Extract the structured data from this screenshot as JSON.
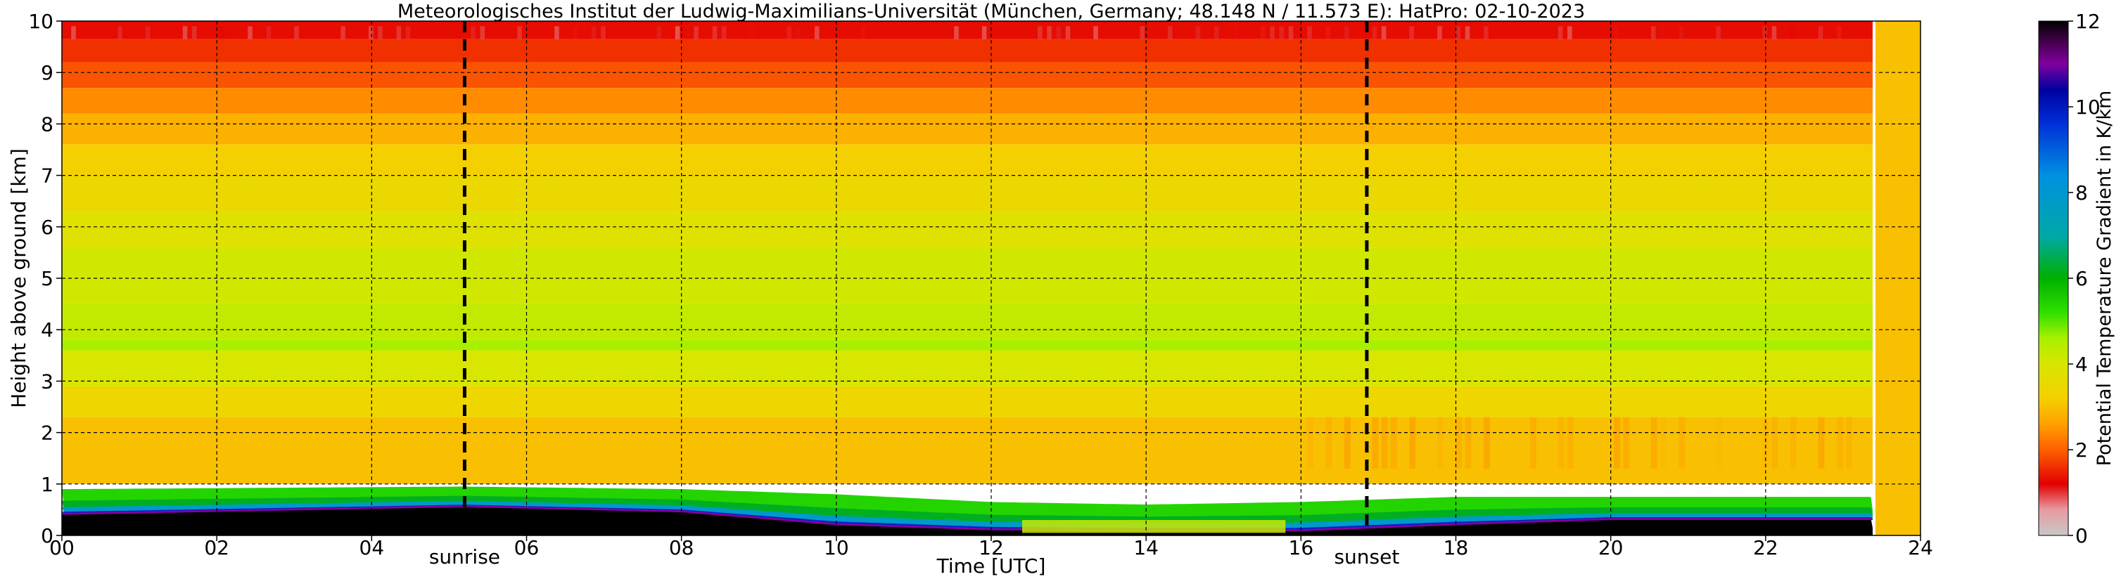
{
  "chart_data": {
    "type": "heatmap",
    "title": "Meteorologisches Institut der Ludwig-Maximilians-Universität (München, Germany; 48.148 N / 11.573 E):    HatPro: 02-10-2023",
    "xlabel": "Time [UTC]",
    "ylabel": "Height above ground [km]",
    "xlim": [
      0,
      24
    ],
    "ylim": [
      0,
      10
    ],
    "x_ticks": [
      {
        "value": 0,
        "label": "00"
      },
      {
        "value": 2,
        "label": "02"
      },
      {
        "value": 4,
        "label": "04"
      },
      {
        "value": 6,
        "label": "06"
      },
      {
        "value": 8,
        "label": "08"
      },
      {
        "value": 10,
        "label": "10"
      },
      {
        "value": 12,
        "label": "12"
      },
      {
        "value": 14,
        "label": "14"
      },
      {
        "value": 16,
        "label": "16"
      },
      {
        "value": 18,
        "label": "18"
      },
      {
        "value": 20,
        "label": "20"
      },
      {
        "value": 22,
        "label": "22"
      },
      {
        "value": 24,
        "label": "24"
      }
    ],
    "y_ticks": [
      {
        "value": 0,
        "label": "0"
      },
      {
        "value": 1,
        "label": "1"
      },
      {
        "value": 2,
        "label": "2"
      },
      {
        "value": 3,
        "label": "3"
      },
      {
        "value": 4,
        "label": "4"
      },
      {
        "value": 5,
        "label": "5"
      },
      {
        "value": 6,
        "label": "6"
      },
      {
        "value": 7,
        "label": "7"
      },
      {
        "value": 8,
        "label": "8"
      },
      {
        "value": 9,
        "label": "9"
      },
      {
        "value": 10,
        "label": "10"
      }
    ],
    "grid": true,
    "events": [
      {
        "label": "sunrise",
        "time": 5.2
      },
      {
        "label": "sunset",
        "time": 16.85
      }
    ],
    "data_end_time": 23.4,
    "colorbar": {
      "label": "Potential Temperature Gradient in K/km",
      "range": [
        0,
        12
      ],
      "ticks": [
        {
          "value": 0,
          "label": "0"
        },
        {
          "value": 2,
          "label": "2"
        },
        {
          "value": 4,
          "label": "4"
        },
        {
          "value": 6,
          "label": "6"
        },
        {
          "value": 8,
          "label": "8"
        },
        {
          "value": 10,
          "label": "10"
        },
        {
          "value": 12,
          "label": "12"
        }
      ],
      "colors": [
        {
          "value": 0,
          "color": "#c8c8c8"
        },
        {
          "value": 0.6,
          "color": "#e89aa0"
        },
        {
          "value": 1.2,
          "color": "#e20000"
        },
        {
          "value": 2.0,
          "color": "#ff6000"
        },
        {
          "value": 2.6,
          "color": "#ffa000"
        },
        {
          "value": 3.2,
          "color": "#f5d000"
        },
        {
          "value": 4.0,
          "color": "#d8e600"
        },
        {
          "value": 4.6,
          "color": "#a8f000"
        },
        {
          "value": 5.2,
          "color": "#30e000"
        },
        {
          "value": 6.0,
          "color": "#00b000"
        },
        {
          "value": 7.0,
          "color": "#00a8a8"
        },
        {
          "value": 8.4,
          "color": "#0090e0"
        },
        {
          "value": 9.6,
          "color": "#0030d8"
        },
        {
          "value": 10.4,
          "color": "#0000a0"
        },
        {
          "value": 11.0,
          "color": "#8000a0"
        },
        {
          "value": 11.6,
          "color": "#3a0040"
        },
        {
          "value": 12,
          "color": "#000000"
        }
      ]
    },
    "layers": [
      {
        "from": 9.65,
        "to": 10,
        "value": 1.3
      },
      {
        "from": 9.2,
        "to": 9.65,
        "value": 1.6
      },
      {
        "from": 8.7,
        "to": 9.2,
        "value": 1.9
      },
      {
        "from": 8.2,
        "to": 8.7,
        "value": 2.4
      },
      {
        "from": 7.6,
        "to": 8.2,
        "value": 2.8
      },
      {
        "from": 7.0,
        "to": 7.6,
        "value": 3.2
      },
      {
        "from": 6.3,
        "to": 7.0,
        "value": 3.5
      },
      {
        "from": 5.6,
        "to": 6.3,
        "value": 3.8
      },
      {
        "from": 4.5,
        "to": 5.6,
        "value": 4.1
      },
      {
        "from": 3.8,
        "to": 4.5,
        "value": 4.3
      },
      {
        "from": 3.6,
        "to": 3.8,
        "value": 4.6
      },
      {
        "from": 2.9,
        "to": 3.6,
        "value": 4.0
      },
      {
        "from": 2.3,
        "to": 2.9,
        "value": 3.4
      },
      {
        "from": 1.0,
        "to": 2.3,
        "value": 3.0
      }
    ],
    "boundary_layer_top_km": [
      {
        "time": 0,
        "height": 0.9
      },
      {
        "time": 5.2,
        "height": 0.95
      },
      {
        "time": 8,
        "height": 0.9
      },
      {
        "time": 10,
        "height": 0.8
      },
      {
        "time": 12,
        "height": 0.65
      },
      {
        "time": 14,
        "height": 0.6
      },
      {
        "time": 16,
        "height": 0.65
      },
      {
        "time": 18,
        "height": 0.75
      },
      {
        "time": 20,
        "height": 0.75
      },
      {
        "time": 23.4,
        "height": 0.75
      }
    ],
    "stable_core_top_km": [
      {
        "time": 0,
        "height": 0.4
      },
      {
        "time": 5.2,
        "height": 0.55
      },
      {
        "time": 8,
        "height": 0.45
      },
      {
        "time": 10,
        "height": 0.2
      },
      {
        "time": 12,
        "height": 0.1
      },
      {
        "time": 14,
        "height": 0.08
      },
      {
        "time": 16,
        "height": 0.08
      },
      {
        "time": 18,
        "height": 0.2
      },
      {
        "time": 20,
        "height": 0.3
      },
      {
        "time": 23.4,
        "height": 0.3
      }
    ]
  }
}
